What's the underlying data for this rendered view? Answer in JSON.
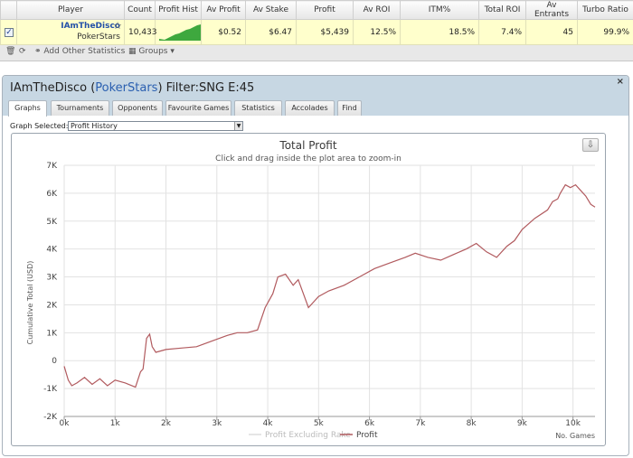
{
  "table": {
    "headers": [
      "",
      "Player",
      "Count",
      "Profit Hist",
      "Av Profit",
      "Av Stake",
      "Profit",
      "Av ROI",
      "ITM%",
      "Total ROI",
      "Av Entrants",
      "Turbo Ratio"
    ],
    "row": {
      "checked": "✓",
      "player": "IAmTheDisco",
      "site": "PokerStars",
      "count": "10,433",
      "av_profit": "$0.52",
      "av_stake": "$6.47",
      "profit": "$5,439",
      "av_roi": "12.5%",
      "itm": "18.5%",
      "total_roi": "7.4%",
      "av_entrants": "45",
      "turbo_ratio": "99.9%"
    }
  },
  "toolbar": {
    "add_stats": "Add Other Statistics",
    "groups": "Groups"
  },
  "dialog": {
    "title_player": "IAmTheDisco (",
    "title_site": "PokerStars",
    "title_rest": ") Filter:SNG E:45",
    "close": "×",
    "tabs": [
      "Graphs",
      "Tournaments",
      "Opponents",
      "Favourite Games",
      "Statistics",
      "Accolades",
      "Find"
    ],
    "graph_selected_label": "Graph Selected:",
    "graph_selected_value": "Profit History"
  },
  "chart_data": {
    "type": "line",
    "title": "Total Profit",
    "subtitle": "Click and drag inside the plot area to zoom-in",
    "xlabel": "No. Games",
    "ylabel": "Cumulative Total (USD)",
    "xlim": [
      0,
      10433
    ],
    "ylim": [
      -2000,
      7000
    ],
    "x_ticks": [
      "0k",
      "1k",
      "2k",
      "3k",
      "4k",
      "5k",
      "6k",
      "7k",
      "8k",
      "9k",
      "10k"
    ],
    "y_ticks": [
      "7K",
      "6K",
      "5K",
      "4K",
      "3K",
      "2K",
      "1K",
      "0",
      "-1K",
      "-2K"
    ],
    "grid": true,
    "legend": "bottom-center",
    "series": [
      {
        "name": "Profit Excluding Rake",
        "color": "#dcdcdc",
        "x": [],
        "y": []
      },
      {
        "name": "Profit",
        "color": "#b15a5e",
        "x": [
          0,
          80,
          150,
          250,
          400,
          550,
          700,
          850,
          1000,
          1200,
          1400,
          1500,
          1550,
          1620,
          1680,
          1730,
          1800,
          2000,
          2300,
          2600,
          2900,
          3200,
          3400,
          3600,
          3800,
          3950,
          4100,
          4200,
          4350,
          4500,
          4600,
          4800,
          5000,
          5200,
          5500,
          5800,
          6100,
          6400,
          6700,
          6900,
          7150,
          7400,
          7650,
          7900,
          8100,
          8300,
          8500,
          8700,
          8850,
          9000,
          9250,
          9500,
          9600,
          9700,
          9750,
          9850,
          9950,
          10050,
          10150,
          10250,
          10350,
          10433
        ],
        "y": [
          -200,
          -700,
          -900,
          -800,
          -600,
          -850,
          -650,
          -900,
          -700,
          -800,
          -950,
          -400,
          -300,
          800,
          950,
          500,
          300,
          400,
          450,
          500,
          700,
          900,
          1000,
          1000,
          1100,
          1900,
          2400,
          3000,
          3100,
          2700,
          2900,
          1900,
          2300,
          2500,
          2700,
          3000,
          3300,
          3500,
          3700,
          3850,
          3700,
          3600,
          3800,
          4000,
          4200,
          3900,
          3700,
          4100,
          4300,
          4700,
          5100,
          5400,
          5700,
          5800,
          6000,
          6300,
          6200,
          6300,
          6100,
          5900,
          5600,
          5500
        ]
      }
    ]
  },
  "colors": {
    "row_bg": "#ffffcc",
    "dialog_header": "#c7d7e3",
    "profit_line": "#b15a5e",
    "player_link": "#2350a8"
  }
}
